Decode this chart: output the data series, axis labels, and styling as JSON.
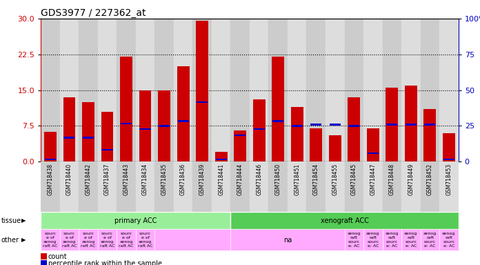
{
  "title": "GDS3977 / 227362_at",
  "samples": [
    "GSM718438",
    "GSM718440",
    "GSM718442",
    "GSM718437",
    "GSM718443",
    "GSM718434",
    "GSM718435",
    "GSM718436",
    "GSM718439",
    "GSM718441",
    "GSM718444",
    "GSM718446",
    "GSM718450",
    "GSM718451",
    "GSM718454",
    "GSM718455",
    "GSM718445",
    "GSM718447",
    "GSM718448",
    "GSM718449",
    "GSM718452",
    "GSM718453"
  ],
  "counts": [
    6.2,
    13.5,
    12.5,
    10.5,
    22.0,
    15.0,
    15.0,
    20.0,
    29.5,
    2.0,
    6.5,
    13.0,
    22.0,
    11.5,
    7.0,
    5.5,
    13.5,
    7.0,
    15.5,
    16.0,
    11.0,
    6.0
  ],
  "pct_left_axis": [
    0.5,
    5.0,
    5.0,
    2.5,
    8.0,
    6.8,
    7.5,
    8.5,
    12.5,
    0.5,
    5.5,
    6.8,
    8.5,
    7.5,
    7.8,
    7.8,
    7.5,
    1.8,
    7.8,
    7.8,
    7.8,
    0.5
  ],
  "ylim_left": [
    0,
    30
  ],
  "ylim_right": [
    0,
    100
  ],
  "yticks_left": [
    0,
    7.5,
    15,
    22.5,
    30
  ],
  "yticks_right": [
    0,
    25,
    50,
    75,
    100
  ],
  "bar_color": "#cc0000",
  "pct_color": "#0000cc",
  "bg_color": "#ffffff",
  "plot_bg": "#ffffff",
  "bar_alt_colors": [
    "#cccccc",
    "#dddddd"
  ],
  "left_tick_color": "#cc0000",
  "right_tick_color": "#0000bb",
  "tissue_row": [
    {
      "label": "primary ACC",
      "start": 0,
      "end": 9,
      "color": "#99ee99"
    },
    {
      "label": "xenograft ACC",
      "start": 10,
      "end": 21,
      "color": "#55cc55"
    }
  ],
  "other_items": [
    {
      "label": "sourc\ne of\nxenog\nraft AC",
      "start": 0,
      "end": 0,
      "color": "#ffaaff"
    },
    {
      "label": "sourc\ne of\nxenog\nraft AC",
      "start": 1,
      "end": 1,
      "color": "#ffaaff"
    },
    {
      "label": "sourc\ne of\nxenog\nraft AC",
      "start": 2,
      "end": 2,
      "color": "#ffaaff"
    },
    {
      "label": "sourc\ne of\nxenog\nraft AC",
      "start": 3,
      "end": 3,
      "color": "#ffaaff"
    },
    {
      "label": "sourc\ne of\nxenog\nraft AC",
      "start": 4,
      "end": 4,
      "color": "#ffaaff"
    },
    {
      "label": "sourc\ne of\nxenog\nraft AC",
      "start": 5,
      "end": 5,
      "color": "#ffaaff"
    },
    {
      "label": "",
      "start": 6,
      "end": 9,
      "color": "#ffaaff"
    },
    {
      "label": "na",
      "start": 10,
      "end": 15,
      "color": "#ffaaff"
    },
    {
      "label": "xenog\nraft\nsourc\ne: AC",
      "start": 16,
      "end": 16,
      "color": "#ffaaff"
    },
    {
      "label": "xenog\nraft\nsourc\ne: AC",
      "start": 17,
      "end": 17,
      "color": "#ffaaff"
    },
    {
      "label": "xenog\nraft\nsourc\ne: AC",
      "start": 18,
      "end": 18,
      "color": "#ffaaff"
    },
    {
      "label": "xenog\nraft\nsourc\ne: AC",
      "start": 19,
      "end": 19,
      "color": "#ffaaff"
    },
    {
      "label": "xenog\nraft\nsourc\ne: AC",
      "start": 20,
      "end": 20,
      "color": "#ffaaff"
    },
    {
      "label": "xenog\nraft\nsourc\ne: AC",
      "start": 21,
      "end": 21,
      "color": "#ffaaff"
    }
  ],
  "tissue_label": "tissue",
  "other_label": "other",
  "count_legend": "count",
  "pct_legend": "percentile rank within the sample"
}
